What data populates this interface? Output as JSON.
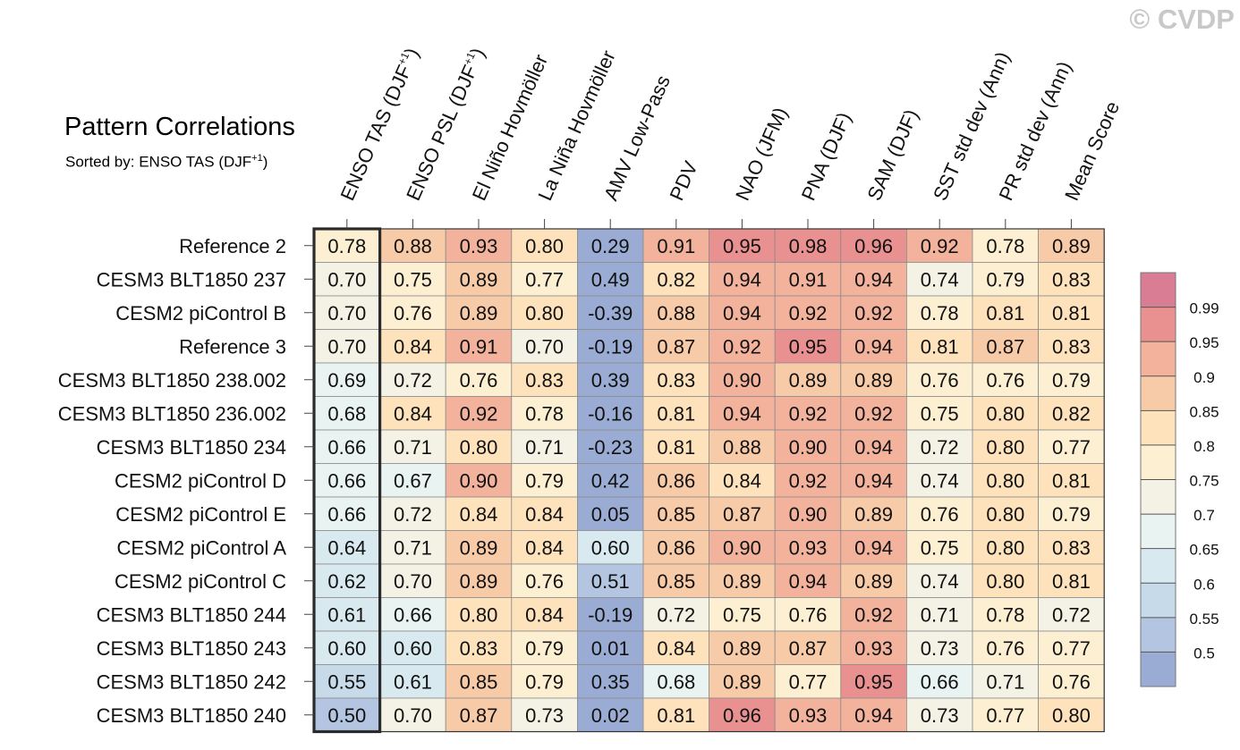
{
  "header": {
    "title": "Pattern Correlations",
    "subtitle": "Sorted by: ENSO TAS (DJF",
    "subtitle_sup": "+1",
    "subtitle_end": ")",
    "watermark": "© CVDP"
  },
  "chart_data": {
    "type": "heatmap",
    "columns": [
      {
        "label": "ENSO TAS (DJF",
        "sup": "+1",
        "end": ")"
      },
      {
        "label": "ENSO PSL (DJF",
        "sup": "+1",
        "end": ")"
      },
      {
        "label": "El Niño Hovmöller"
      },
      {
        "label": "La Niña Hovmöller"
      },
      {
        "label": "AMV Low-Pass"
      },
      {
        "label": "PDV"
      },
      {
        "label": "NAO (JFM)"
      },
      {
        "label": "PNA (DJF)"
      },
      {
        "label": "SAM (DJF)"
      },
      {
        "label": "SST std dev (Ann)"
      },
      {
        "label": "PR std dev (Ann)"
      },
      {
        "label": "Mean Score"
      }
    ],
    "rows": [
      {
        "label": "Reference 2",
        "values": [
          "0.78",
          "0.88",
          "0.93",
          "0.80",
          "0.29",
          "0.91",
          "0.95",
          "0.98",
          "0.96",
          "0.92",
          "0.78",
          "0.89"
        ]
      },
      {
        "label": "CESM3 BLT1850 237",
        "values": [
          "0.70",
          "0.75",
          "0.89",
          "0.77",
          "0.49",
          "0.82",
          "0.94",
          "0.91",
          "0.94",
          "0.74",
          "0.79",
          "0.83"
        ]
      },
      {
        "label": "CESM2 piControl B",
        "values": [
          "0.70",
          "0.76",
          "0.89",
          "0.80",
          "-0.39",
          "0.88",
          "0.94",
          "0.92",
          "0.92",
          "0.78",
          "0.81",
          "0.81"
        ]
      },
      {
        "label": "Reference 3",
        "values": [
          "0.70",
          "0.84",
          "0.91",
          "0.70",
          "-0.19",
          "0.87",
          "0.92",
          "0.95",
          "0.94",
          "0.81",
          "0.87",
          "0.83"
        ]
      },
      {
        "label": "CESM3 BLT1850 238.002",
        "values": [
          "0.69",
          "0.72",
          "0.76",
          "0.83",
          "0.39",
          "0.83",
          "0.90",
          "0.89",
          "0.89",
          "0.76",
          "0.76",
          "0.79"
        ]
      },
      {
        "label": "CESM3 BLT1850 236.002",
        "values": [
          "0.68",
          "0.84",
          "0.92",
          "0.78",
          "-0.16",
          "0.81",
          "0.94",
          "0.92",
          "0.92",
          "0.75",
          "0.80",
          "0.82"
        ]
      },
      {
        "label": "CESM3 BLT1850 234",
        "values": [
          "0.66",
          "0.71",
          "0.80",
          "0.71",
          "-0.23",
          "0.81",
          "0.88",
          "0.90",
          "0.94",
          "0.72",
          "0.80",
          "0.77"
        ]
      },
      {
        "label": "CESM2 piControl D",
        "values": [
          "0.66",
          "0.67",
          "0.90",
          "0.79",
          "0.42",
          "0.86",
          "0.84",
          "0.92",
          "0.94",
          "0.74",
          "0.80",
          "0.81"
        ]
      },
      {
        "label": "CESM2 piControl E",
        "values": [
          "0.66",
          "0.72",
          "0.84",
          "0.84",
          "0.05",
          "0.85",
          "0.87",
          "0.90",
          "0.89",
          "0.76",
          "0.80",
          "0.79"
        ]
      },
      {
        "label": "CESM2 piControl A",
        "values": [
          "0.64",
          "0.71",
          "0.89",
          "0.84",
          "0.60",
          "0.86",
          "0.90",
          "0.93",
          "0.94",
          "0.75",
          "0.80",
          "0.83"
        ]
      },
      {
        "label": "CESM2 piControl C",
        "values": [
          "0.62",
          "0.70",
          "0.89",
          "0.76",
          "0.51",
          "0.85",
          "0.89",
          "0.94",
          "0.89",
          "0.74",
          "0.80",
          "0.81"
        ]
      },
      {
        "label": "CESM3 BLT1850 244",
        "values": [
          "0.61",
          "0.66",
          "0.80",
          "0.84",
          "-0.19",
          "0.72",
          "0.75",
          "0.76",
          "0.92",
          "0.71",
          "0.78",
          "0.72"
        ]
      },
      {
        "label": "CESM3 BLT1850 243",
        "values": [
          "0.60",
          "0.60",
          "0.83",
          "0.79",
          "0.01",
          "0.84",
          "0.89",
          "0.87",
          "0.93",
          "0.73",
          "0.76",
          "0.77"
        ]
      },
      {
        "label": "CESM3 BLT1850 242",
        "values": [
          "0.55",
          "0.61",
          "0.85",
          "0.79",
          "0.35",
          "0.68",
          "0.89",
          "0.77",
          "0.95",
          "0.66",
          "0.71",
          "0.76"
        ]
      },
      {
        "label": "CESM3 BLT1850 240",
        "values": [
          "0.50",
          "0.70",
          "0.87",
          "0.73",
          "0.02",
          "0.81",
          "0.96",
          "0.93",
          "0.94",
          "0.73",
          "0.77",
          "0.80"
        ]
      }
    ],
    "sorted_column": 0,
    "colorbar": {
      "ticks": [
        "0.99",
        "0.95",
        "0.9",
        "0.85",
        "0.8",
        "0.75",
        "0.7",
        "0.65",
        "0.6",
        "0.55",
        "0.5"
      ],
      "levels": [
        0.5,
        0.55,
        0.6,
        0.65,
        0.7,
        0.75,
        0.8,
        0.85,
        0.9,
        0.95,
        0.99
      ],
      "colors": [
        "#9aabd4",
        "#b3c5e0",
        "#c6dae9",
        "#d9e9f0",
        "#e8f3f2",
        "#f4f2e4",
        "#fdf0d2",
        "#fde2bc",
        "#f8cba8",
        "#f3b29c",
        "#e99090",
        "#d97d94"
      ]
    }
  }
}
